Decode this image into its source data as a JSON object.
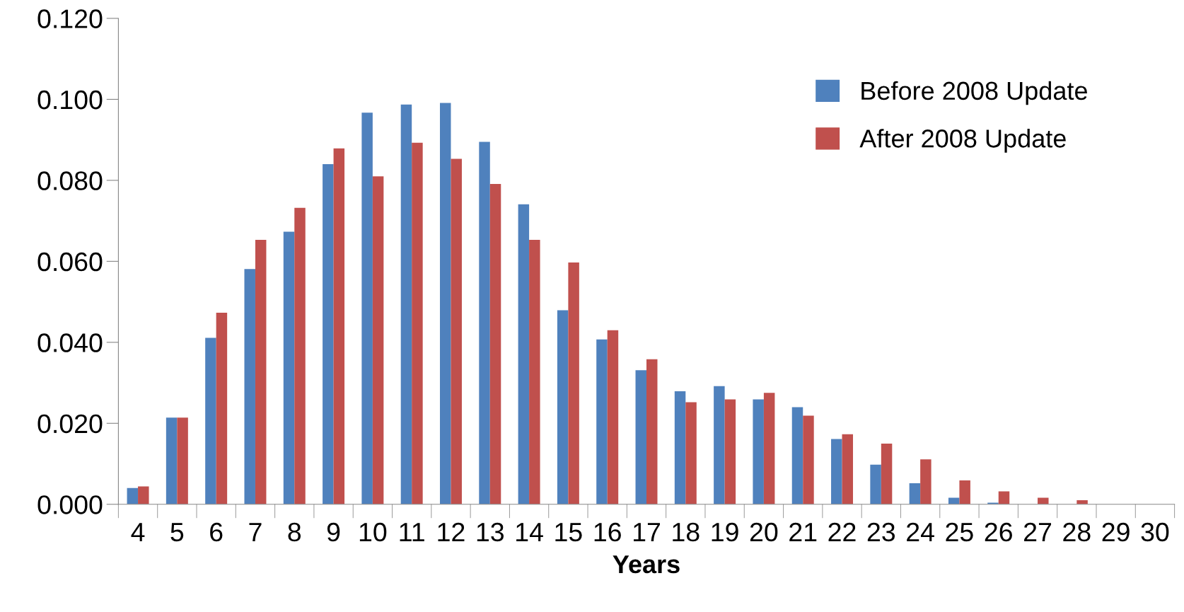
{
  "chart_data": {
    "type": "bar",
    "xlabel": "Years",
    "categories": [
      "4",
      "5",
      "6",
      "7",
      "8",
      "9",
      "10",
      "11",
      "12",
      "13",
      "14",
      "15",
      "16",
      "17",
      "18",
      "19",
      "20",
      "21",
      "22",
      "23",
      "24",
      "25",
      "26",
      "27",
      "28",
      "29",
      "30"
    ],
    "series": [
      {
        "name": "Before 2008 Update",
        "color": "#4f81bd",
        "values": [
          0.004,
          0.0214,
          0.0411,
          0.0581,
          0.0673,
          0.084,
          0.0967,
          0.0987,
          0.0991,
          0.0895,
          0.0741,
          0.0479,
          0.0407,
          0.0331,
          0.0279,
          0.0292,
          0.0259,
          0.024,
          0.0161,
          0.0098,
          0.0052,
          0.0016,
          0.0004,
          null,
          0.0,
          0.0,
          0.0
        ]
      },
      {
        "name": "After 2008 Update",
        "color": "#c0504d",
        "values": [
          0.0044,
          0.0214,
          0.0473,
          0.0653,
          0.0732,
          0.0879,
          0.081,
          0.0893,
          0.0853,
          0.0791,
          0.0653,
          0.0597,
          0.043,
          0.0358,
          0.0252,
          0.0259,
          0.0275,
          0.0219,
          0.0173,
          0.015,
          0.0111,
          0.0059,
          0.0032,
          0.0016,
          0.001,
          null,
          null
        ]
      }
    ],
    "ylim": [
      0,
      0.12
    ],
    "yticks": [
      {
        "value": 0,
        "label": "0.000"
      },
      {
        "value": 0.02,
        "label": "0.020"
      },
      {
        "value": 0.04,
        "label": "0.040"
      },
      {
        "value": 0.06,
        "label": "0.060"
      },
      {
        "value": 0.08,
        "label": "0.080"
      },
      {
        "value": 0.1,
        "label": "0.100"
      },
      {
        "value": 0.12,
        "label": "0.120"
      }
    ],
    "grid": false,
    "legend": "top right"
  }
}
